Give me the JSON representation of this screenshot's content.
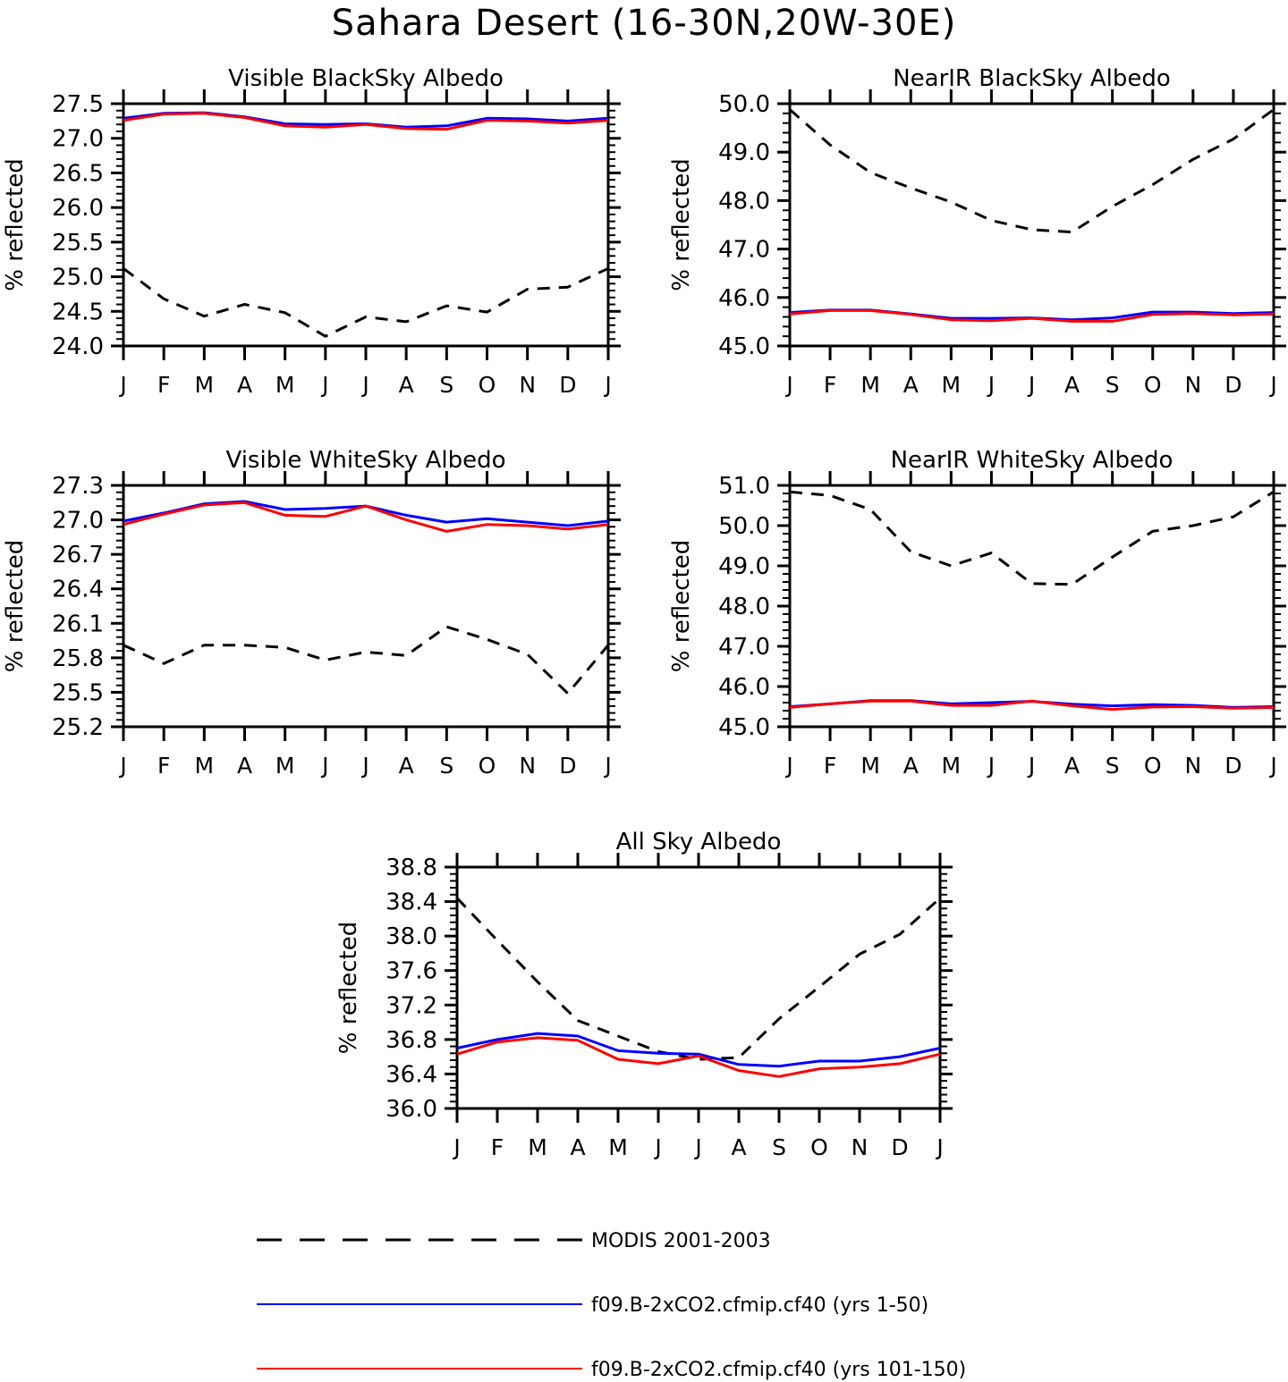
{
  "figure": {
    "title": "Sahara Desert (16-30N,20W-30E)"
  },
  "legend": [
    {
      "label": "MODIS 2001-2003",
      "color": "#000000",
      "dash": true
    },
    {
      "label": "f09.B-2xCO2.cfmip.cf40 (yrs 1-50)",
      "color": "#0000ff",
      "dash": false
    },
    {
      "label": "f09.B-2xCO2.cfmip.cf40 (yrs 101-150)",
      "color": "#ff0000",
      "dash": false
    }
  ],
  "chart_data": [
    {
      "type": "line",
      "title": "Visible BlackSky Albedo",
      "ylabel": "% reflected",
      "categories": [
        "J",
        "F",
        "M",
        "A",
        "M",
        "J",
        "J",
        "A",
        "S",
        "O",
        "N",
        "D",
        "J"
      ],
      "ylim": [
        24.0,
        27.5
      ],
      "yticks": [
        "27.5",
        "27.0",
        "26.5",
        "26.0",
        "25.5",
        "25.0",
        "24.5",
        "24.0"
      ],
      "series": [
        {
          "name": "MODIS 2001-2003",
          "color": "#000000",
          "dashed": true,
          "values": [
            25.12,
            24.68,
            24.43,
            24.6,
            24.48,
            24.14,
            24.42,
            24.35,
            24.58,
            24.49,
            24.82,
            24.85,
            25.12
          ]
        },
        {
          "name": "f09.B-2xCO2.cfmip.cf40 (yrs 1-50)",
          "color": "#0000ff",
          "dashed": false,
          "values": [
            27.29,
            27.36,
            27.37,
            27.31,
            27.21,
            27.2,
            27.21,
            27.16,
            27.18,
            27.29,
            27.28,
            27.25,
            27.29
          ]
        },
        {
          "name": "f09.B-2xCO2.cfmip.cf40 (yrs 101-150)",
          "color": "#ff0000",
          "dashed": false,
          "values": [
            27.26,
            27.35,
            27.36,
            27.3,
            27.18,
            27.16,
            27.2,
            27.14,
            27.13,
            27.26,
            27.25,
            27.22,
            27.26
          ]
        }
      ]
    },
    {
      "type": "line",
      "title": "NearIR BlackSky Albedo",
      "ylabel": "% reflected",
      "categories": [
        "J",
        "F",
        "M",
        "A",
        "M",
        "J",
        "J",
        "A",
        "S",
        "O",
        "N",
        "D",
        "J"
      ],
      "ylim": [
        45.0,
        50.0
      ],
      "yticks": [
        "50.0",
        "49.0",
        "48.0",
        "47.0",
        "46.0",
        "45.0"
      ],
      "series": [
        {
          "name": "MODIS 2001-2003",
          "color": "#000000",
          "dashed": true,
          "values": [
            49.88,
            49.15,
            48.58,
            48.26,
            47.97,
            47.59,
            47.4,
            47.35,
            47.88,
            48.33,
            48.85,
            49.27,
            49.88
          ]
        },
        {
          "name": "f09.B-2xCO2.cfmip.cf40 (yrs 1-50)",
          "color": "#0000ff",
          "dashed": false,
          "values": [
            45.69,
            45.74,
            45.74,
            45.66,
            45.57,
            45.57,
            45.58,
            45.54,
            45.58,
            45.7,
            45.7,
            45.67,
            45.69
          ]
        },
        {
          "name": "f09.B-2xCO2.cfmip.cf40 (yrs 101-150)",
          "color": "#ff0000",
          "dashed": false,
          "values": [
            45.66,
            45.73,
            45.73,
            45.65,
            45.54,
            45.52,
            45.57,
            45.51,
            45.51,
            45.65,
            45.67,
            45.64,
            45.66
          ]
        }
      ]
    },
    {
      "type": "line",
      "title": "Visible WhiteSky Albedo",
      "ylabel": "% reflected",
      "categories": [
        "J",
        "F",
        "M",
        "A",
        "M",
        "J",
        "J",
        "A",
        "S",
        "O",
        "N",
        "D",
        "J"
      ],
      "ylim": [
        25.2,
        27.3
      ],
      "yticks": [
        "27.3",
        "27.0",
        "26.7",
        "26.4",
        "26.1",
        "25.8",
        "25.5",
        "25.2"
      ],
      "series": [
        {
          "name": "MODIS 2001-2003",
          "color": "#000000",
          "dashed": true,
          "values": [
            25.91,
            25.75,
            25.91,
            25.91,
            25.89,
            25.78,
            25.85,
            25.82,
            26.07,
            25.96,
            25.83,
            25.49,
            25.91
          ]
        },
        {
          "name": "f09.B-2xCO2.cfmip.cf40 (yrs 1-50)",
          "color": "#0000ff",
          "dashed": false,
          "values": [
            26.99,
            27.06,
            27.14,
            27.16,
            27.09,
            27.1,
            27.12,
            27.04,
            26.98,
            27.01,
            26.98,
            26.95,
            26.99
          ]
        },
        {
          "name": "f09.B-2xCO2.cfmip.cf40 (yrs 101-150)",
          "color": "#ff0000",
          "dashed": false,
          "values": [
            26.96,
            27.05,
            27.13,
            27.15,
            27.04,
            27.03,
            27.12,
            27.0,
            26.9,
            26.96,
            26.95,
            26.92,
            26.96
          ]
        }
      ]
    },
    {
      "type": "line",
      "title": "NearIR WhiteSky Albedo",
      "ylabel": "% reflected",
      "categories": [
        "J",
        "F",
        "M",
        "A",
        "M",
        "J",
        "J",
        "A",
        "S",
        "O",
        "N",
        "D",
        "J"
      ],
      "ylim": [
        45.0,
        51.0
      ],
      "yticks": [
        "51.0",
        "50.0",
        "49.0",
        "48.0",
        "47.0",
        "46.0",
        "45.0"
      ],
      "series": [
        {
          "name": "MODIS 2001-2003",
          "color": "#000000",
          "dashed": true,
          "values": [
            50.84,
            50.75,
            50.4,
            49.35,
            49.0,
            49.32,
            48.56,
            48.54,
            49.22,
            49.86,
            50.0,
            50.22,
            50.84
          ]
        },
        {
          "name": "f09.B-2xCO2.cfmip.cf40 (yrs 1-50)",
          "color": "#0000ff",
          "dashed": false,
          "values": [
            45.5,
            45.57,
            45.65,
            45.65,
            45.57,
            45.6,
            45.63,
            45.56,
            45.52,
            45.55,
            45.53,
            45.48,
            45.5
          ]
        },
        {
          "name": "f09.B-2xCO2.cfmip.cf40 (yrs 101-150)",
          "color": "#ff0000",
          "dashed": false,
          "values": [
            45.48,
            45.57,
            45.64,
            45.64,
            45.53,
            45.53,
            45.64,
            45.52,
            45.43,
            45.49,
            45.5,
            45.46,
            45.48
          ]
        }
      ]
    },
    {
      "type": "line",
      "title": "All Sky Albedo",
      "ylabel": "% reflected",
      "categories": [
        "J",
        "F",
        "M",
        "A",
        "M",
        "J",
        "J",
        "A",
        "S",
        "O",
        "N",
        "D",
        "J"
      ],
      "ylim": [
        36.0,
        38.8
      ],
      "yticks": [
        "38.8",
        "38.4",
        "38.0",
        "37.6",
        "37.2",
        "36.8",
        "36.4",
        "36.0"
      ],
      "series": [
        {
          "name": "MODIS 2001-2003",
          "color": "#000000",
          "dashed": true,
          "values": [
            38.44,
            37.95,
            37.47,
            37.02,
            36.84,
            36.66,
            36.57,
            36.59,
            37.04,
            37.41,
            37.79,
            38.02,
            38.44
          ]
        },
        {
          "name": "f09.B-2xCO2.cfmip.cf40 (yrs 1-50)",
          "color": "#0000ff",
          "dashed": false,
          "values": [
            36.7,
            36.8,
            36.87,
            36.84,
            36.67,
            36.64,
            36.63,
            36.51,
            36.49,
            36.55,
            36.55,
            36.6,
            36.7
          ]
        },
        {
          "name": "f09.B-2xCO2.cfmip.cf40 (yrs 101-150)",
          "color": "#ff0000",
          "dashed": false,
          "values": [
            36.63,
            36.77,
            36.82,
            36.79,
            36.57,
            36.52,
            36.61,
            36.44,
            36.37,
            36.46,
            36.48,
            36.52,
            36.63
          ]
        }
      ]
    }
  ]
}
